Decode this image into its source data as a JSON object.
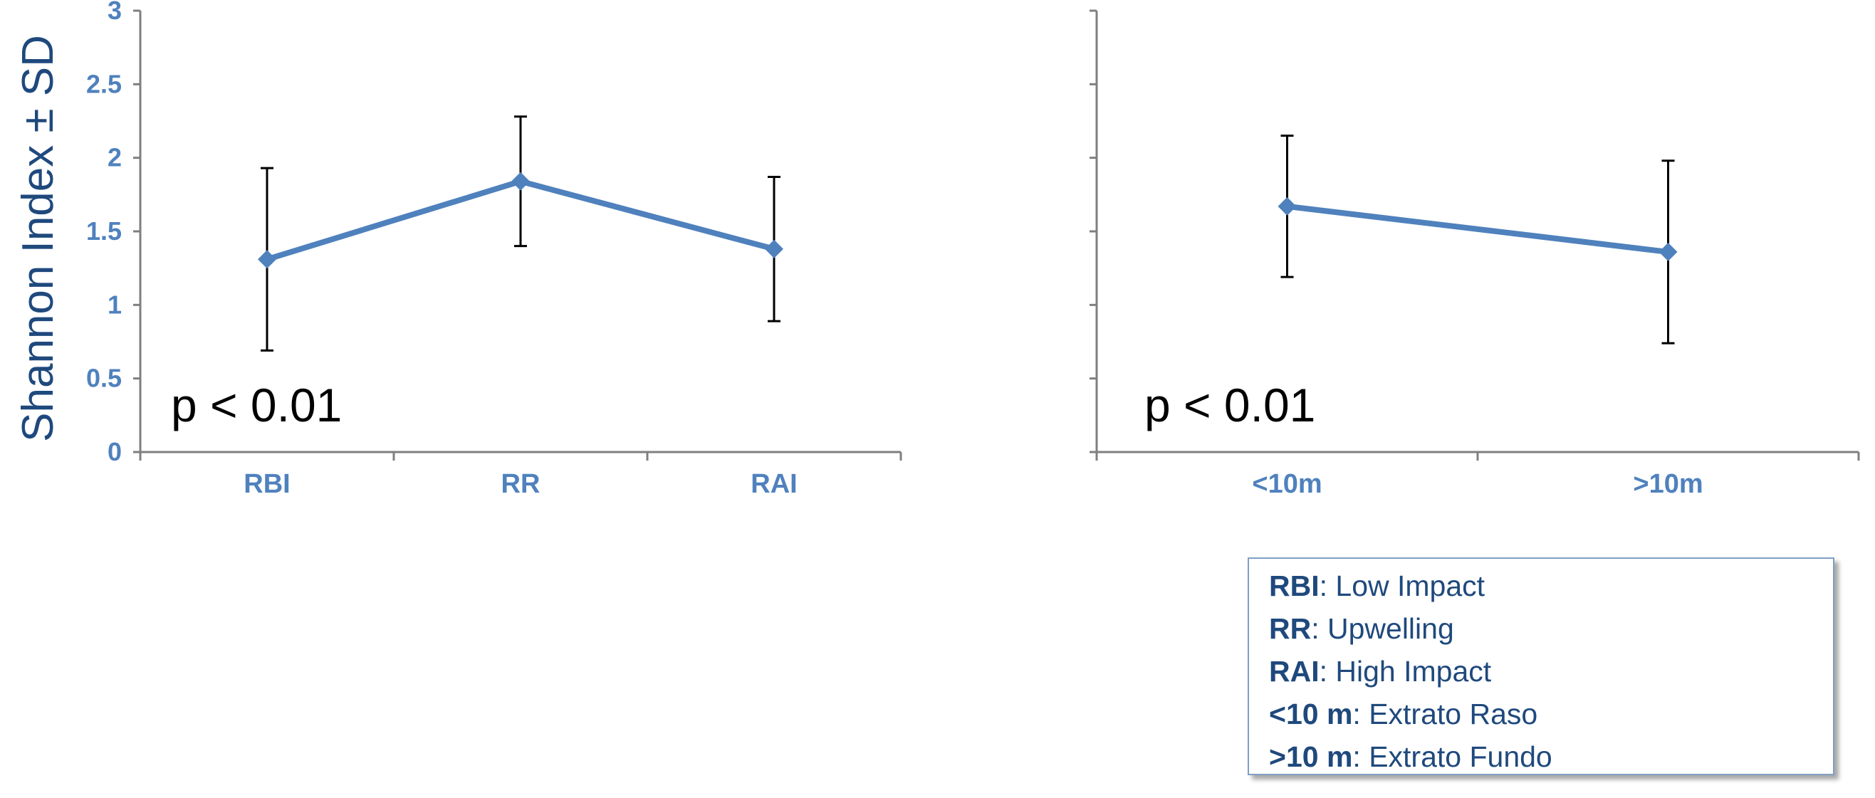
{
  "chart_data": [
    {
      "type": "line",
      "ylabel": "Shannon Index ± SD",
      "ylim": [
        0,
        3
      ],
      "yticks": [
        "0",
        "0.5",
        "1",
        "1.5",
        "2",
        "2.5",
        "3"
      ],
      "categories": [
        "RBI",
        "RR",
        "RAI"
      ],
      "series": [
        {
          "values": [
            1.31,
            1.84,
            1.38
          ],
          "sd": [
            0.62,
            0.44,
            0.49
          ]
        }
      ],
      "annotation": "p < 0.01",
      "color": "#4f81bd"
    },
    {
      "type": "line",
      "ylim": [
        0,
        3
      ],
      "categories": [
        "<10m",
        ">10m"
      ],
      "series": [
        {
          "values": [
            1.67,
            1.36
          ],
          "sd": [
            0.48,
            0.62
          ]
        }
      ],
      "annotation": "p < 0.01",
      "color": "#4f81bd"
    }
  ],
  "legend": [
    {
      "key": "RBI",
      "text": ": Low Impact"
    },
    {
      "key": "RR",
      "text": ": Upwelling"
    },
    {
      "key": "RAI",
      "text": ": High Impact"
    },
    {
      "key": "<10 m",
      "text": ": Extrato Raso"
    },
    {
      "key": ">10 m",
      "text": ": Extrato Fundo"
    }
  ]
}
